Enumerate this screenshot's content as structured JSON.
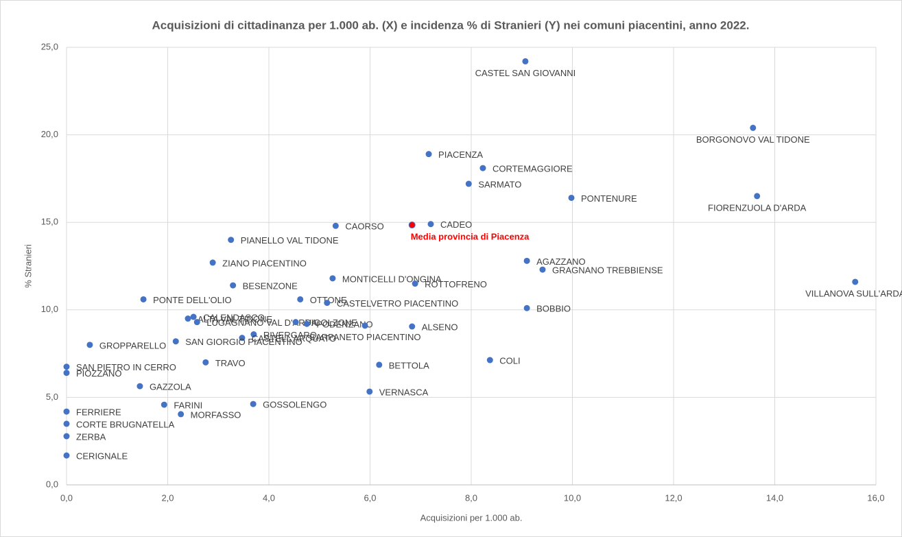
{
  "chart_data": {
    "type": "scatter",
    "title": "Acquisizioni di cittadinanza per 1.000 ab. (X) e incidenza % di Stranieri (Y) nei comuni piacentini, anno 2022.",
    "x_label": "Acquisizioni per 1.000 ab.",
    "y_label": "% Stranieri",
    "color": "#4472c4",
    "labels": [
      "CASTEL SAN GIOVANNI",
      "BORGONOVO VAL TIDONE",
      "PIACENZA",
      "CORTEMAGGIORE",
      "SARMATO",
      "PONTENURE",
      "FIORENZUOLA D'ARDA",
      "CAORSO",
      "CADEO",
      "PIANELLO VAL TIDONE",
      "ZIANO PIACENTINO",
      "AGAZZANO",
      "GRAGNANO TREBBIENSE",
      "VILLANOVA SULL'ARDA",
      "MONTICELLI D'ONGINA",
      "ROTTOFRENO",
      "BESENZONE",
      "PONTE DELL'OLIO",
      "OTTONE",
      "CASTELVETRO PIACENTINO",
      "BOBBIO",
      "CALENDASCO",
      "ALTA VAL TIDONE",
      "LUGAGNANO VAL D'ARDA",
      "VIGOLZONE",
      "PODENZANO",
      "ALSENO",
      "CARPANETO PIACENTINO",
      "RIVERGARO",
      "CASTELL'ARQUATO",
      "SAN GIORGIO PIACENTINO",
      "GROPPARELLO",
      "SAN PIETRO IN CERRO",
      "PIOZZANO",
      "TRAVO",
      "BETTOLA",
      "COLI",
      "GAZZOLA",
      "VERNASCA",
      "FARINI",
      "GOSSOLENGO",
      "MORFASSO",
      "FERRIERE",
      "CORTE BRUGNATELLA",
      "ZERBA",
      "CERIGNALE"
    ],
    "x": [
      9.07,
      13.57,
      7.16,
      8.23,
      7.95,
      9.98,
      13.65,
      5.32,
      7.2,
      3.25,
      2.89,
      9.1,
      9.41,
      15.59,
      5.26,
      6.89,
      3.29,
      1.52,
      4.62,
      5.15,
      9.1,
      2.51,
      2.4,
      2.58,
      4.53,
      4.75,
      6.83,
      5.9,
      3.7,
      3.47,
      2.16,
      0.46,
      0,
      0,
      2.75,
      6.18,
      8.37,
      1.45,
      5.99,
      1.93,
      3.69,
      2.26,
      0,
      0,
      0,
      0
    ],
    "y": [
      24.2,
      20.4,
      18.9,
      18.1,
      17.2,
      16.4,
      16.5,
      14.8,
      14.9,
      14.0,
      12.7,
      12.8,
      12.3,
      11.6,
      11.8,
      11.5,
      11.4,
      10.6,
      10.6,
      10.4,
      10.1,
      9.6,
      9.5,
      9.3,
      9.3,
      9.2,
      9.05,
      9.1,
      8.6,
      8.4,
      8.2,
      8.0,
      6.75,
      6.4,
      7.0,
      6.86,
      7.13,
      5.64,
      5.33,
      4.58,
      4.62,
      4.04,
      4.19,
      3.49,
      2.78,
      1.68
    ],
    "highlight": {
      "label": "Media provincia di Piacenza",
      "x": 6.83,
      "y": 14.85,
      "color": "#ff0000"
    },
    "xlim": [
      0,
      16
    ],
    "ylim": [
      0,
      25
    ],
    "xticks": [
      {
        "value": 0,
        "label": "0,0"
      },
      {
        "value": 2,
        "label": "2,0"
      },
      {
        "value": 4,
        "label": "4,0"
      },
      {
        "value": 6,
        "label": "6,0"
      },
      {
        "value": 8,
        "label": "8,0"
      },
      {
        "value": 10,
        "label": "10,0"
      },
      {
        "value": 12,
        "label": "12,0"
      },
      {
        "value": 14,
        "label": "14,0"
      },
      {
        "value": 16,
        "label": "16,0"
      }
    ],
    "yticks": [
      {
        "value": 0,
        "label": "0,0"
      },
      {
        "value": 5,
        "label": "5,0"
      },
      {
        "value": 10,
        "label": "10,0"
      },
      {
        "value": 15,
        "label": "15,0"
      },
      {
        "value": 20,
        "label": "20,0"
      },
      {
        "value": 25,
        "label": "25,0"
      }
    ],
    "grid": true
  }
}
